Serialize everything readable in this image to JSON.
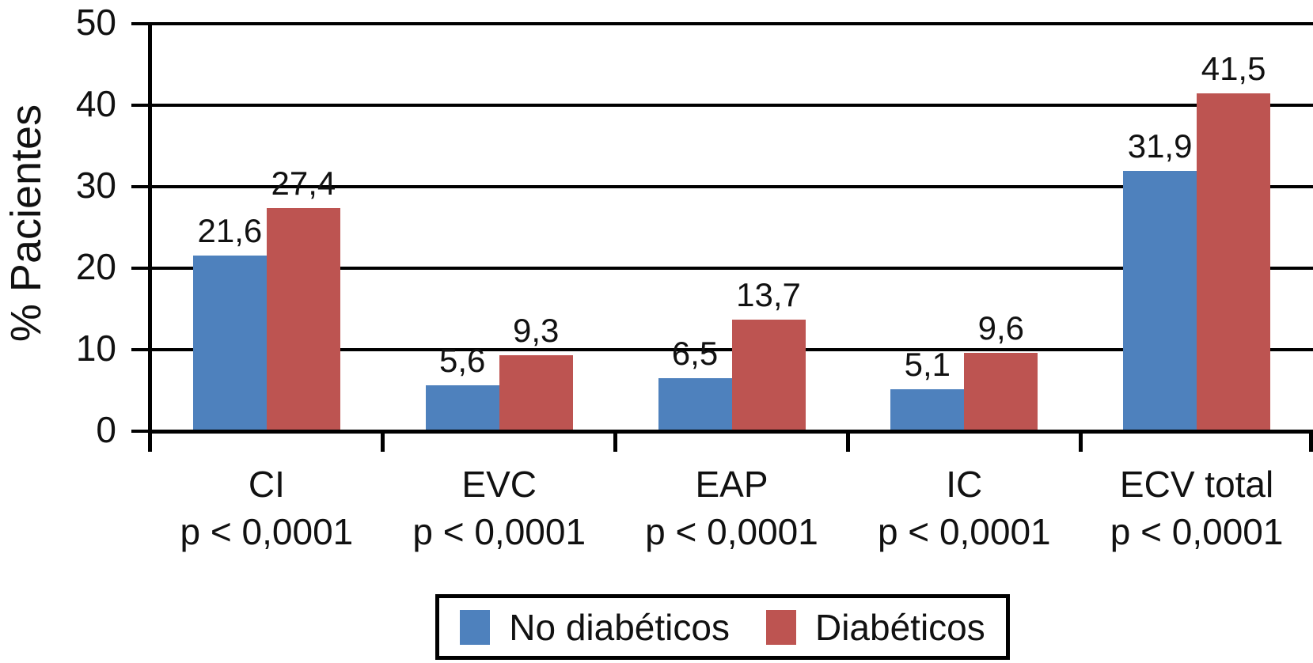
{
  "chart_data": {
    "type": "bar",
    "title": "",
    "ylabel": "% Pacientes",
    "xlabel": "",
    "categories": [
      "CI",
      "EVC",
      "EAP",
      "IC",
      "ECV total"
    ],
    "category_pvalues": [
      "p < 0,0001",
      "p < 0,0001",
      "p < 0,0001",
      "p < 0,0001",
      "p < 0,0001"
    ],
    "yticks": [
      0,
      10,
      20,
      30,
      40,
      50
    ],
    "ylim": [
      0,
      50
    ],
    "grid": true,
    "grid_color": "#000000",
    "legend_position": "bottom-center",
    "series": [
      {
        "name": "No diabéticos",
        "color": "#4E81BD",
        "values": [
          21.6,
          5.6,
          6.5,
          5.1,
          31.9
        ],
        "value_labels": [
          "21,6",
          "5,6",
          "6,5",
          "5,1",
          "31,9"
        ]
      },
      {
        "name": "Diabéticos",
        "color": "#BD5451",
        "values": [
          27.4,
          9.3,
          13.7,
          9.6,
          41.5
        ],
        "value_labels": [
          "27,4",
          "9,3",
          "13,7",
          "9,6",
          "41,5"
        ]
      }
    ]
  }
}
